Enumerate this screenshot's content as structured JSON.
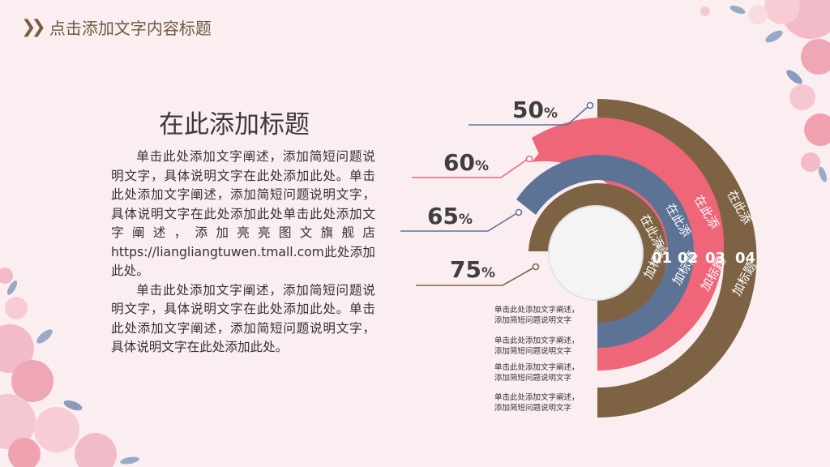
{
  "header": {
    "title": "点击添加文字内容标题"
  },
  "content": {
    "title": "在此添加标题",
    "paragraph1": "单击此处添加文字阐述，添加简短问题说明文字，具体说明文字在此处添加此处。单击此处添加文字阐述，添加简短问题说明文字，具体说明文字在此处添加此处单击此处添加文字阐述，添加亮亮图文旗舰店https://liangliangtuwen.tmall.com此处添加此处。",
    "paragraph2": "单击此处添加文字阐述，添加简短问题说明文字，具体说明文字在此处添加此处。单击此处添加文字阐述，添加简短问题说明文字，具体说明文字在此处添加此处。"
  },
  "colors": {
    "brown": "#7d6343",
    "pink": "#ef6678",
    "blue": "#5d7396",
    "center": "#f4f4f4",
    "background": "#fbeef1"
  },
  "rings": [
    {
      "number": "01",
      "label_top": "在此添",
      "label_bottom": "加标题",
      "percent": "75",
      "unit": "%",
      "color": "#7d6343"
    },
    {
      "number": "02",
      "label_top": "在此添",
      "label_bottom": "加标题",
      "percent": "65",
      "unit": "%",
      "color": "#5d7396"
    },
    {
      "number": "03",
      "label_top": "在此添",
      "label_bottom": "加标题",
      "percent": "60",
      "unit": "%",
      "color": "#ef6678"
    },
    {
      "number": "04",
      "label_top": "在此添",
      "label_bottom": "加标题",
      "percent": "50",
      "unit": "%",
      "color": "#7d6343"
    }
  ],
  "notes": [
    {
      "line1": "单击此处添加文字阐述，",
      "line2": "添加简短问题说明文字"
    },
    {
      "line1": "单击此处添加文字阐述，",
      "line2": "添加简短问题说明文字"
    },
    {
      "line1": "单击此处添加文字阐述，",
      "line2": "添加简短问题说明文字"
    },
    {
      "line1": "单击此处添加文字阐述，",
      "line2": "添加简短问题说明文字"
    }
  ]
}
